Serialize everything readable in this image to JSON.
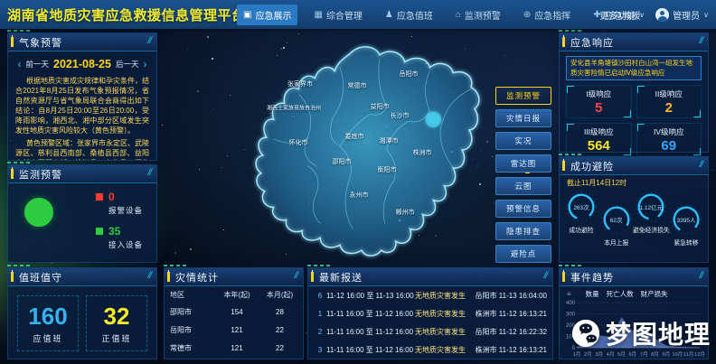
{
  "colors": {
    "accent_yellow": "#ffd21f",
    "alarm_red": "#ff3b30",
    "ok_green": "#2ecc3f",
    "level1_red": "#ff4545",
    "level2_amber": "#ffb627",
    "level3_yellow": "#ffe927",
    "level4_blue": "#35aaff",
    "value_blue": "#35b2f2",
    "value_yellow": "#f4ea27",
    "map_glow": "#9feaff"
  },
  "header": {
    "title": "湖南省地质灾害应急救援信息管理平台",
    "nav": [
      {
        "label": "应急展示",
        "icon": "monitor-icon"
      },
      {
        "label": "综合管理",
        "icon": "grid-icon"
      },
      {
        "label": "应急值班",
        "icon": "person-icon"
      },
      {
        "label": "监测预警",
        "icon": "alarm-icon"
      },
      {
        "label": "应急指挥",
        "icon": "globe-icon"
      },
      {
        "label": "应急救援",
        "icon": "helmet-icon"
      }
    ],
    "more_label": "更多功能",
    "user_label": "管理员"
  },
  "weather_panel": {
    "title": "气象预警",
    "prev_label": "前一天",
    "date": "2021-08-25",
    "next_label": "后一天",
    "para1": "根据地质灾害成灾规律和孕灾条件，结合2021年8月25日发布气象预报情况，省自然资源厅与省气象局联合会商得出如下结论：自8月25日20:00至26日20:00，受降雨影响，湘西北、湘中部分区域发生突发性地质灾害风险较大（黄色预警）。",
    "para2": "黄色预警区域：张家界市永定区、武陵源区、慈利县西南部、桑植县西部、益阳市赫山区西南部、桃江县、安化县、怀化市沅陵县、溆浦县北部、湘西州吉首市西部、泸溪县北部、凤凰县东部、花垣县东南部、保靖县、古丈县、永顺县、龙山县等，具体预报见附图。"
  },
  "monitor_panel": {
    "title": "监测预警",
    "alarm_value": "0",
    "alarm_label": "报警设备",
    "connected_value": "35",
    "connected_label": "接入设备"
  },
  "duty_panel": {
    "title": "值班值守",
    "standby_value": "160",
    "standby_label": "应值班",
    "onduty_value": "32",
    "onduty_label": "正值班"
  },
  "map": {
    "buttons": [
      {
        "label": "监测预警",
        "active": true
      },
      {
        "label": "灾情日报",
        "active": false
      },
      {
        "label": "实况",
        "active": false
      },
      {
        "label": "雷达图",
        "active": false
      },
      {
        "label": "云图",
        "active": false
      },
      {
        "label": "预警信息",
        "active": false
      },
      {
        "label": "隐患排查",
        "active": false
      },
      {
        "label": "避险点",
        "active": false
      }
    ],
    "cities": [
      "张家界市",
      "常德市",
      "岳阳市",
      "湘西土家族苗族自治州",
      "益阳市",
      "长沙市",
      "怀化市",
      "娄底市",
      "湘潭市",
      "株洲市",
      "邵阳市",
      "衡阳市",
      "永州市",
      "郴州市"
    ]
  },
  "disaster_stats": {
    "title": "灾情统计",
    "columns": [
      "地区",
      "本年(起)",
      "本月(起)"
    ],
    "rows": [
      [
        "邵阳市",
        "154",
        "28"
      ],
      [
        "岳阳市",
        "121",
        "22"
      ],
      [
        "常德市",
        "121",
        "22"
      ]
    ]
  },
  "latest_reports": {
    "title": "最新报送",
    "rows": [
      {
        "index": "6",
        "period": "11-12 16:00 至 11-13 16:00",
        "status": "无地质灾害发生",
        "source": "岳阳市 11-13 16:04:00"
      },
      {
        "index": "1",
        "period": "11-11 16:00 至 11-12 16:00",
        "status": "无地质灾害发生",
        "source": "株洲市 11-12 16:13:21"
      },
      {
        "index": "2",
        "period": "11-11 16:00 至 11-12 16:00",
        "status": "无地质灾害发生",
        "source": "岳阳市 11-12 16:22:32"
      },
      {
        "index": "3",
        "period": "11-11 16:00 至 11-12 16:00",
        "status": "无地质灾害发生",
        "source": "株洲市 11-12 16:13:21"
      }
    ]
  },
  "response_panel": {
    "title": "应急响应",
    "alert": "安化县羊角塘镇沙田村白山湾一组发生地质灾害险情已启动Ⅳ级应急响应",
    "levels": [
      {
        "label": "I级响应",
        "value": "5",
        "color": "#ff4545"
      },
      {
        "label": "II级响应",
        "value": "2",
        "color": "#ffb627"
      },
      {
        "label": "III级响应",
        "value": "564",
        "color": "#ffe927"
      },
      {
        "label": "IV级响应",
        "value": "69",
        "color": "#35aaff"
      }
    ]
  },
  "avoidance_panel": {
    "title": "成功避险",
    "as_of": "截止11月14日12时",
    "gauges": [
      {
        "value": "263次",
        "label": "成功避险"
      },
      {
        "value": "62次",
        "label": "本月上报"
      },
      {
        "value": "1.12亿元",
        "label": "避免经济损失"
      },
      {
        "value": "3395人",
        "label": "紧急转移"
      }
    ]
  },
  "trend_panel": {
    "title": "事件趋势",
    "legend": [
      "数量",
      "死亡人数",
      "财产损失"
    ],
    "chart": {
      "type": "area",
      "categories": [
        "1月",
        "2月",
        "3月",
        "4月",
        "5月",
        "6月",
        "7月",
        "8月",
        "9月",
        "10月",
        "11月",
        "12月"
      ],
      "values": [
        10,
        30,
        110,
        95,
        270,
        150,
        175,
        80,
        20,
        10,
        5,
        5
      ],
      "ylim": [
        0,
        400
      ],
      "yticks": [
        0,
        100,
        200,
        300,
        400
      ],
      "fill_color": "#5a78c2"
    }
  },
  "watermark": {
    "text": "梦图地理",
    "icon": "wechat-icon"
  }
}
